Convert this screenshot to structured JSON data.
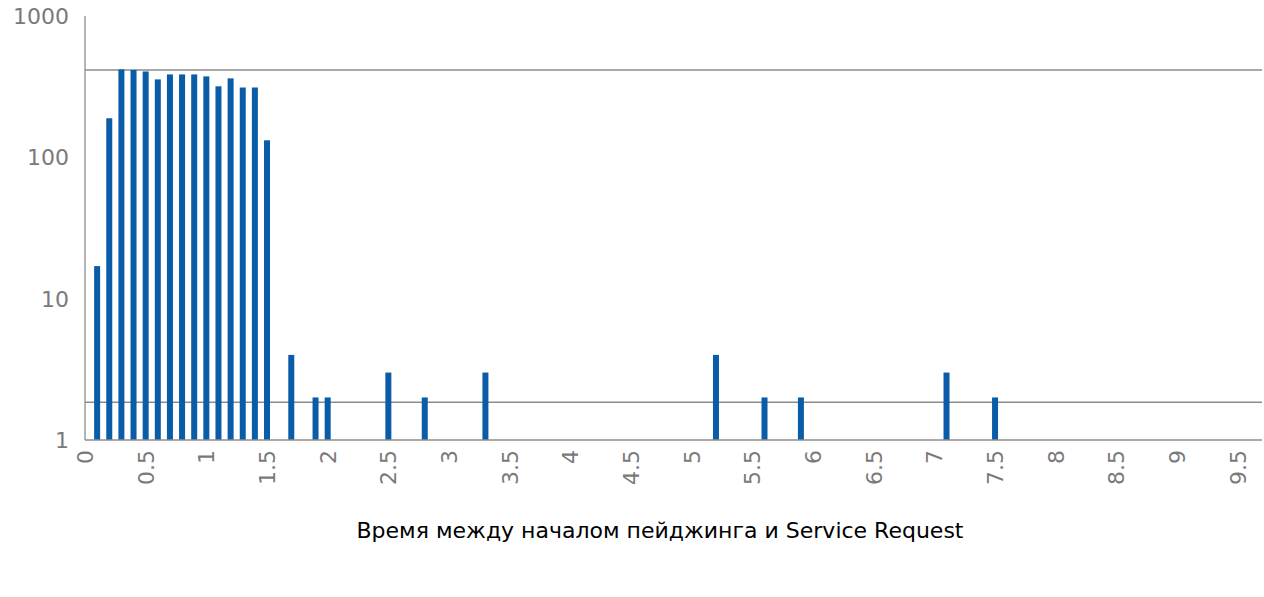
{
  "chart_data": {
    "type": "bar",
    "x_label": "Время между началом пейджинга и Service Request",
    "x": [
      0.1,
      0.2,
      0.3,
      0.4,
      0.5,
      0.6,
      0.7,
      0.8,
      0.9,
      1.0,
      1.1,
      1.2,
      1.3,
      1.4,
      1.5,
      1.7,
      1.9,
      2.0,
      2.5,
      2.8,
      3.3,
      5.2,
      5.6,
      5.9,
      7.1,
      7.5
    ],
    "values": [
      17,
      189,
      419,
      415,
      405,
      356,
      386,
      386,
      386,
      374,
      318,
      362,
      312,
      312,
      132,
      4,
      2,
      2,
      3,
      2,
      3,
      4,
      2,
      2,
      3,
      2
    ],
    "color": "#0a5ca8",
    "xlim": [
      0,
      9.7
    ],
    "xticks": [
      0,
      0.5,
      1,
      1.5,
      2,
      2.5,
      3,
      3.5,
      4,
      4.5,
      5,
      5.5,
      6,
      6.5,
      7,
      7.5,
      8,
      8.5,
      9,
      9.5
    ],
    "ylim": [
      1,
      1000
    ],
    "yticks": [
      1,
      10,
      100,
      1000
    ],
    "hlines": [
      415,
      1.85
    ],
    "log": "y",
    "grid": false
  }
}
